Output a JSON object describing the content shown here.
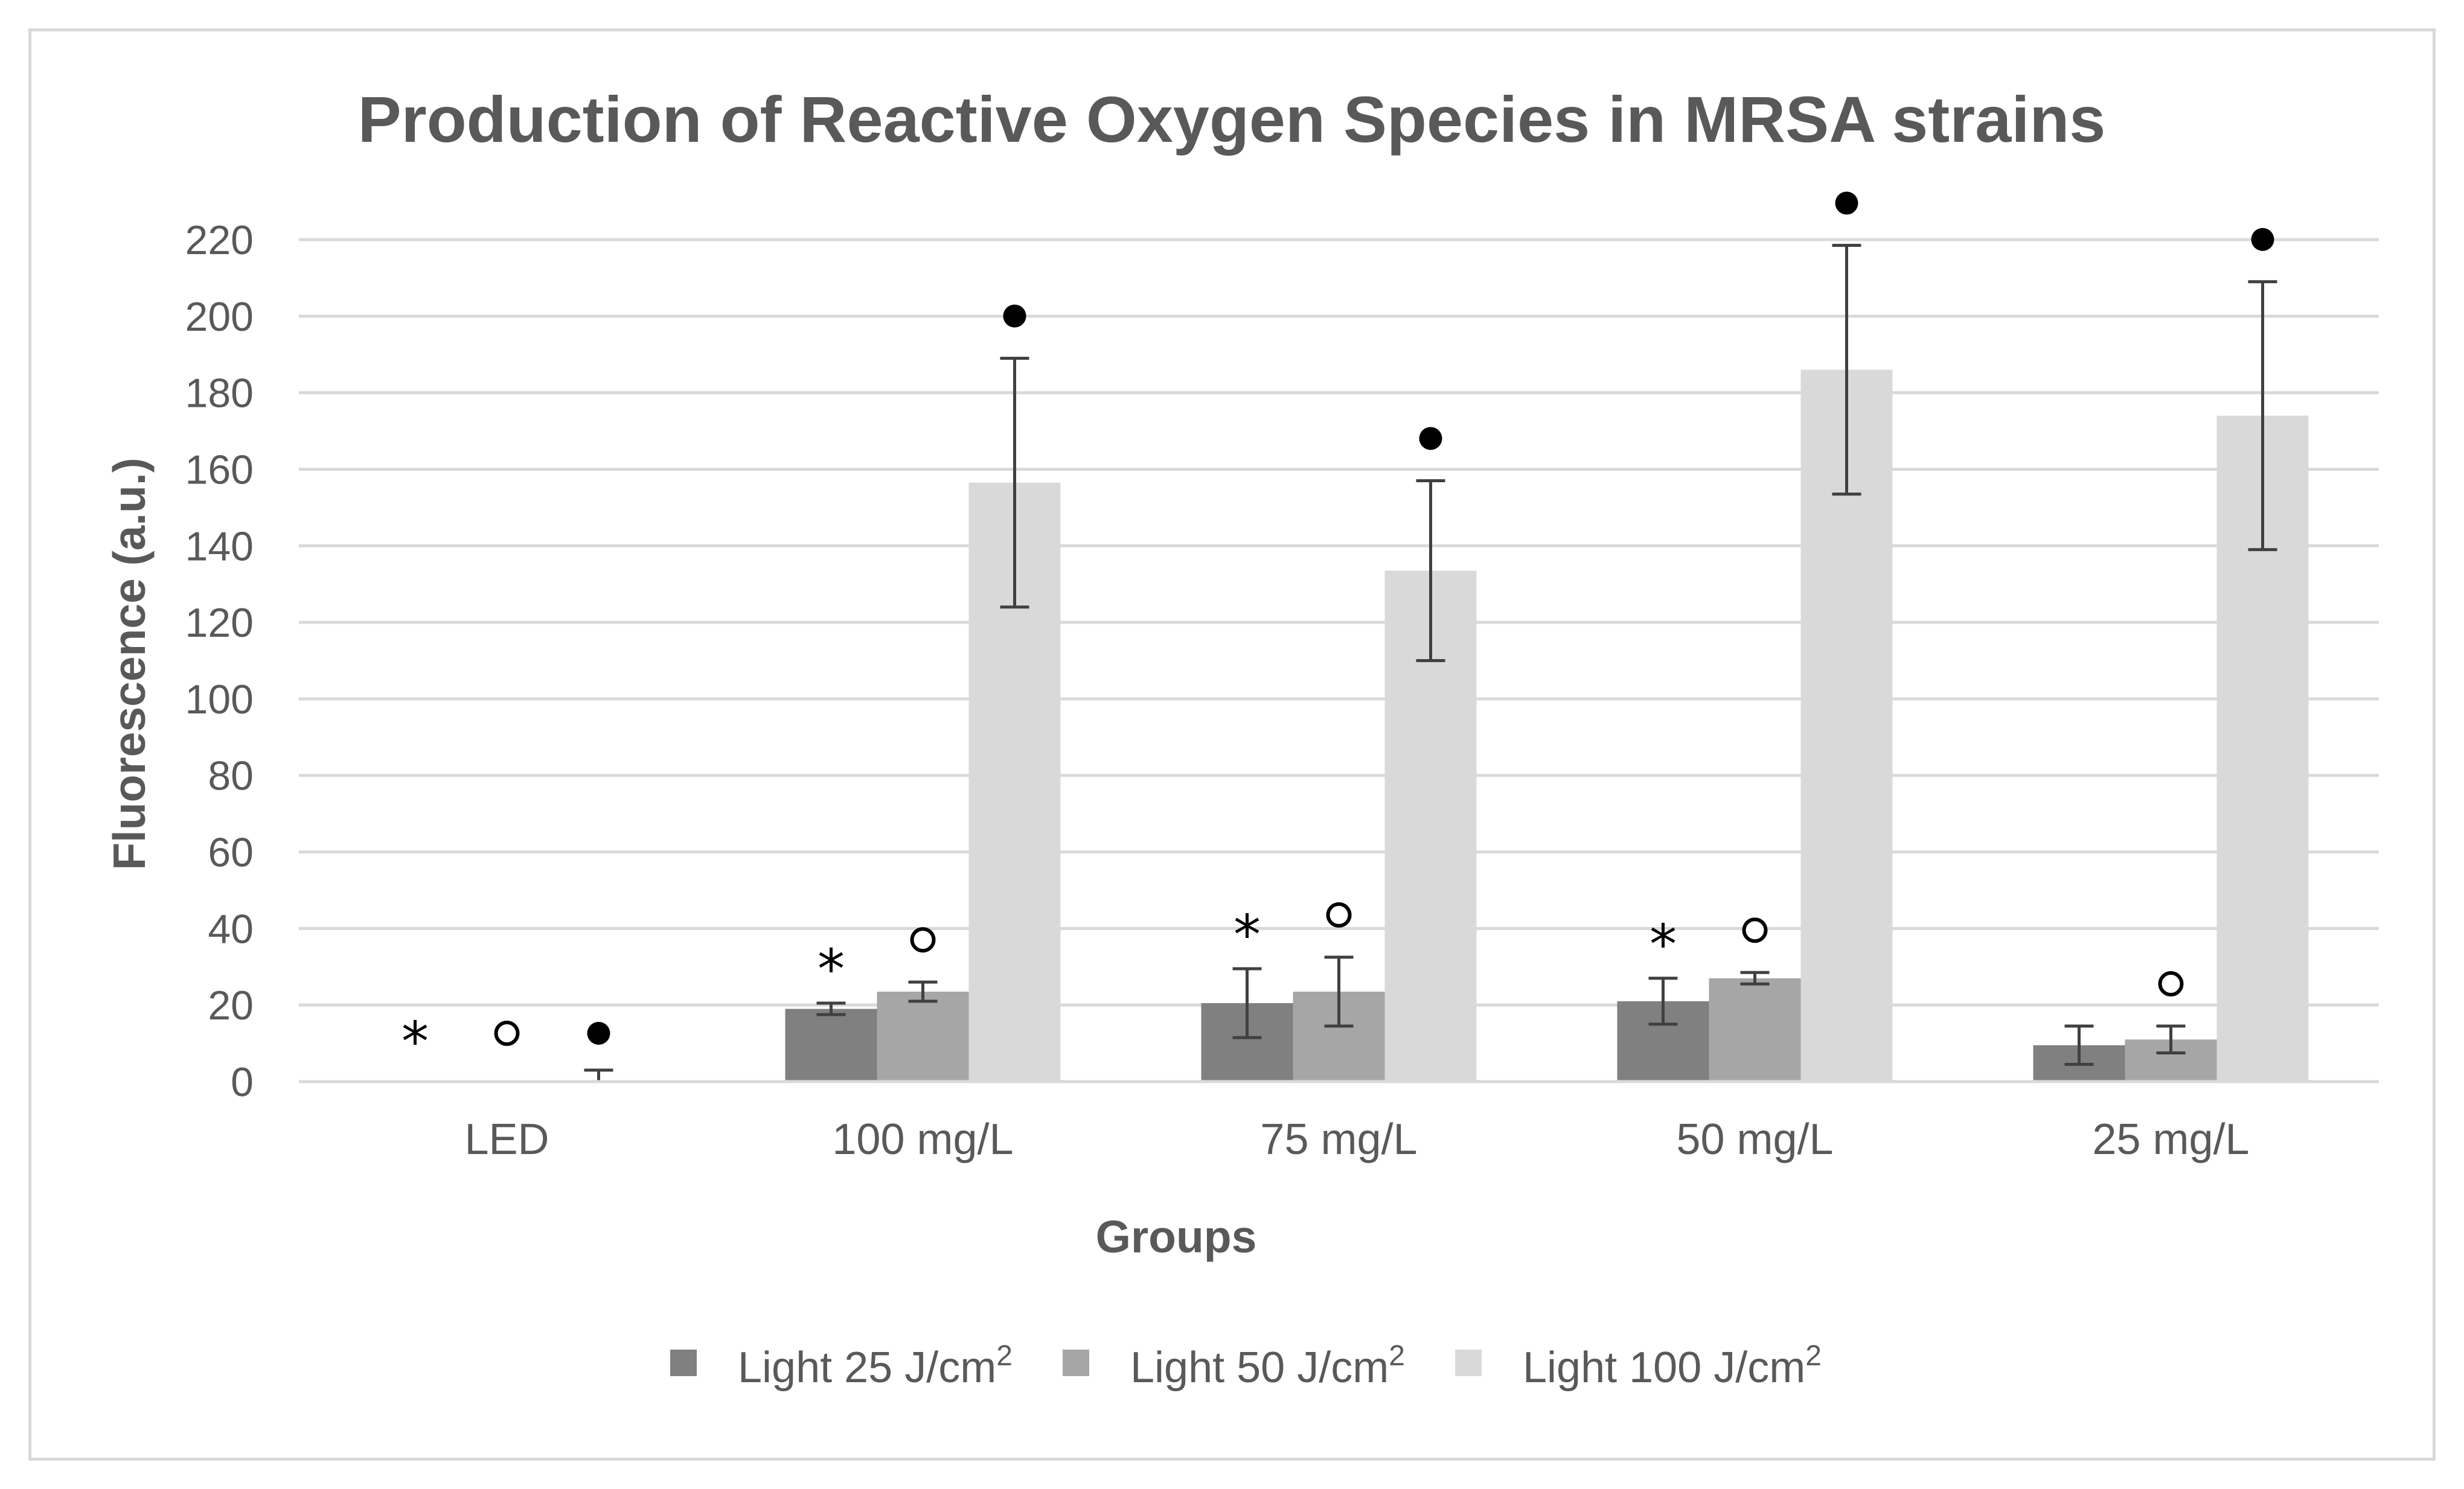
{
  "chart_data": {
    "type": "bar",
    "title": "Production of Reactive Oxygen Species in MRSA strains",
    "xlabel": "Groups",
    "ylabel": "Fluorescence (a.u.)",
    "ylim": [
      0,
      220
    ],
    "yticks": [
      0,
      20,
      40,
      60,
      80,
      100,
      120,
      140,
      160,
      180,
      200,
      220
    ],
    "grid": true,
    "legend_position": "bottom",
    "categories": [
      "LED",
      "100 mg/L",
      "75 mg/L",
      "50 mg/L",
      "25 mg/L"
    ],
    "series": [
      {
        "name": "Light 25 J/cm",
        "name_sup": "2",
        "color": "#808080",
        "values": [
          0,
          19,
          20.5,
          21,
          9.5
        ],
        "error": [
          0,
          1.5,
          9,
          6,
          5
        ],
        "marker": "*",
        "marker_shown": [
          true,
          true,
          true,
          true,
          false
        ]
      },
      {
        "name": "Light 50 J/cm",
        "name_sup": "2",
        "color": "#a6a6a6",
        "values": [
          0,
          23.5,
          23.5,
          27,
          11
        ],
        "error": [
          0,
          2.5,
          9,
          1.5,
          3.5
        ],
        "marker": "open-circle",
        "marker_shown": [
          true,
          true,
          true,
          true,
          true
        ]
      },
      {
        "name": "Light 100 J/cm",
        "name_sup": "2",
        "color": "#d9d9d9",
        "values": [
          0,
          156.5,
          133.5,
          186,
          174
        ],
        "error": [
          3,
          32.5,
          23.5,
          32.5,
          35
        ],
        "marker": "filled-circle",
        "marker_shown": [
          true,
          true,
          true,
          true,
          true
        ]
      }
    ]
  }
}
